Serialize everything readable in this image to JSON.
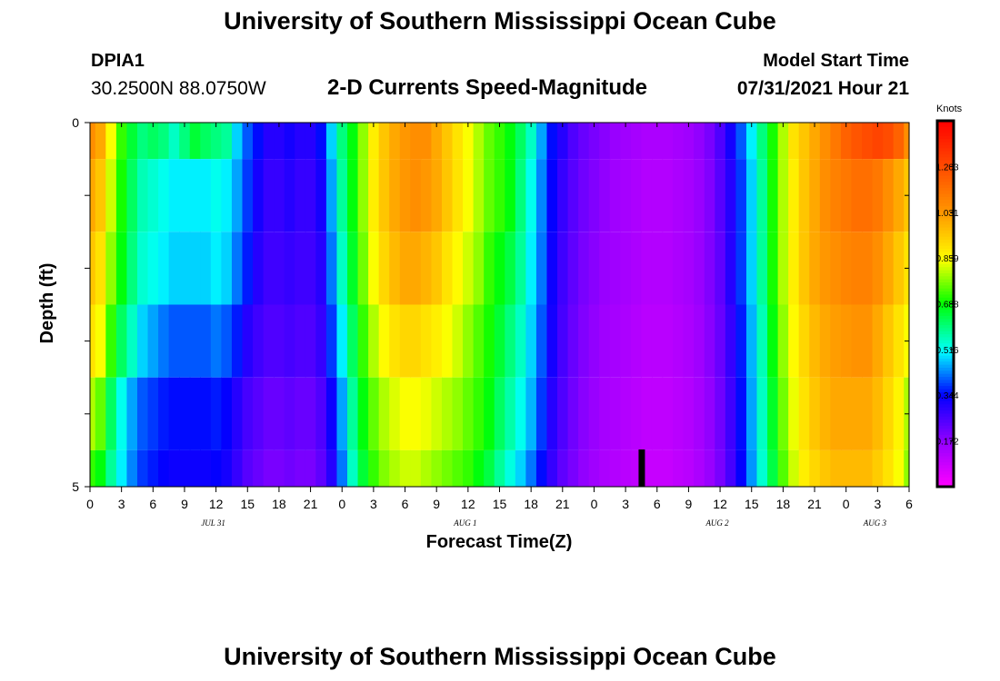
{
  "header": {
    "title": "University of Southern Mississippi Ocean Cube",
    "station_id": "DPIA1",
    "coords": "30.2500N  88.0750W",
    "model_label": "Model Start Time",
    "model_time": "07/31/2021 Hour 21"
  },
  "footer": {
    "title": "University of Southern Mississippi Ocean Cube"
  },
  "chart_data": {
    "type": "heatmap",
    "title": "2-D Currents Speed-Magnitude",
    "xlabel": "Forecast Time(Z)",
    "ylabel": "Depth (ft)",
    "x_range_hours": [
      0,
      78
    ],
    "y_range": [
      0,
      5
    ],
    "y_ticks": [
      "0",
      "5"
    ],
    "x_tick_labels": [
      "0",
      "3",
      "6",
      "9",
      "12",
      "15",
      "18",
      "21",
      "0",
      "3",
      "6",
      "9",
      "12",
      "15",
      "18",
      "21",
      "0",
      "3",
      "6",
      "9",
      "12",
      "15",
      "18",
      "21",
      "0",
      "3",
      "6"
    ],
    "date_labels": [
      {
        "label": "JUL 31",
        "hour": 12
      },
      {
        "label": "AUG 1",
        "hour": 36
      },
      {
        "label": "AUG 2",
        "hour": 60
      },
      {
        "label": "AUG 3",
        "hour": 75
      }
    ],
    "colorbar": {
      "units": "Knots",
      "min": 0.0,
      "max": 1.375,
      "ticks": [
        "0.172",
        "0.344",
        "0.516",
        "0.688",
        "0.859",
        "1.031",
        "1.203"
      ]
    },
    "marker_hour": 52.5,
    "depth_layers": [
      {
        "from": 0,
        "to": 0.5
      },
      {
        "from": 0.5,
        "to": 1.5
      },
      {
        "from": 1.5,
        "to": 2.5
      },
      {
        "from": 2.5,
        "to": 3.5
      },
      {
        "from": 3.5,
        "to": 4.5
      },
      {
        "from": 4.5,
        "to": 5
      }
    ],
    "speed_by_layer": [
      [
        1.05,
        1.0,
        0.85,
        0.72,
        0.65,
        0.6,
        0.62,
        0.6,
        0.55,
        0.6,
        0.65,
        0.62,
        0.6,
        0.58,
        0.48,
        0.4,
        0.35,
        0.3,
        0.3,
        0.32,
        0.3,
        0.3,
        0.35,
        0.48,
        0.6,
        0.68,
        0.78,
        0.88,
        0.95,
        1.0,
        1.03,
        1.05,
        1.05,
        1.0,
        0.95,
        0.9,
        0.85,
        0.8,
        0.75,
        0.72,
        0.68,
        0.62,
        0.55,
        0.45,
        0.35,
        0.3,
        0.25,
        0.22,
        0.2,
        0.18,
        0.16,
        0.15,
        0.14,
        0.13,
        0.13,
        0.13,
        0.14,
        0.15,
        0.17,
        0.2,
        0.25,
        0.32,
        0.4,
        0.5,
        0.6,
        0.7,
        0.8,
        0.9,
        0.95,
        1.0,
        1.05,
        1.1,
        1.15,
        1.18,
        1.2,
        1.22,
        1.2,
        1.15,
        1.05
      ],
      [
        1.0,
        0.95,
        0.82,
        0.7,
        0.62,
        0.56,
        0.54,
        0.52,
        0.5,
        0.5,
        0.5,
        0.5,
        0.52,
        0.5,
        0.45,
        0.38,
        0.32,
        0.28,
        0.28,
        0.3,
        0.28,
        0.28,
        0.32,
        0.45,
        0.58,
        0.68,
        0.78,
        0.88,
        0.95,
        1.0,
        1.03,
        1.05,
        1.03,
        1.0,
        0.95,
        0.9,
        0.85,
        0.8,
        0.75,
        0.72,
        0.68,
        0.6,
        0.52,
        0.43,
        0.34,
        0.28,
        0.24,
        0.21,
        0.19,
        0.17,
        0.15,
        0.14,
        0.13,
        0.12,
        0.12,
        0.12,
        0.13,
        0.14,
        0.16,
        0.19,
        0.24,
        0.3,
        0.38,
        0.48,
        0.58,
        0.7,
        0.8,
        0.88,
        0.95,
        1.0,
        1.05,
        1.08,
        1.1,
        1.12,
        1.12,
        1.1,
        1.05,
        1.0,
        0.95
      ],
      [
        0.95,
        0.9,
        0.78,
        0.68,
        0.6,
        0.54,
        0.52,
        0.5,
        0.48,
        0.48,
        0.48,
        0.48,
        0.5,
        0.48,
        0.42,
        0.36,
        0.3,
        0.27,
        0.27,
        0.28,
        0.27,
        0.27,
        0.3,
        0.42,
        0.55,
        0.66,
        0.76,
        0.85,
        0.92,
        0.97,
        1.0,
        1.0,
        0.98,
        0.95,
        0.9,
        0.86,
        0.82,
        0.78,
        0.72,
        0.68,
        0.64,
        0.58,
        0.5,
        0.42,
        0.33,
        0.27,
        0.23,
        0.2,
        0.18,
        0.16,
        0.15,
        0.14,
        0.13,
        0.12,
        0.12,
        0.12,
        0.13,
        0.14,
        0.16,
        0.19,
        0.23,
        0.3,
        0.38,
        0.48,
        0.58,
        0.7,
        0.8,
        0.88,
        0.95,
        1.0,
        1.03,
        1.05,
        1.07,
        1.08,
        1.08,
        1.05,
        1.0,
        0.95,
        0.9
      ],
      [
        0.9,
        0.85,
        0.72,
        0.62,
        0.55,
        0.48,
        0.45,
        0.42,
        0.4,
        0.4,
        0.4,
        0.4,
        0.42,
        0.4,
        0.36,
        0.3,
        0.27,
        0.25,
        0.25,
        0.26,
        0.25,
        0.25,
        0.28,
        0.38,
        0.5,
        0.62,
        0.72,
        0.8,
        0.86,
        0.9,
        0.92,
        0.92,
        0.9,
        0.88,
        0.85,
        0.82,
        0.78,
        0.74,
        0.7,
        0.65,
        0.6,
        0.55,
        0.48,
        0.4,
        0.32,
        0.26,
        0.22,
        0.19,
        0.17,
        0.15,
        0.14,
        0.13,
        0.12,
        0.11,
        0.11,
        0.11,
        0.12,
        0.13,
        0.15,
        0.18,
        0.22,
        0.28,
        0.36,
        0.46,
        0.56,
        0.68,
        0.78,
        0.86,
        0.92,
        0.97,
        1.0,
        1.02,
        1.03,
        1.04,
        1.04,
        1.0,
        0.95,
        0.9,
        0.85
      ],
      [
        0.8,
        0.75,
        0.62,
        0.52,
        0.45,
        0.4,
        0.38,
        0.36,
        0.35,
        0.35,
        0.35,
        0.35,
        0.36,
        0.34,
        0.3,
        0.26,
        0.24,
        0.22,
        0.22,
        0.23,
        0.22,
        0.22,
        0.25,
        0.33,
        0.45,
        0.58,
        0.68,
        0.75,
        0.8,
        0.83,
        0.85,
        0.85,
        0.84,
        0.82,
        0.8,
        0.78,
        0.75,
        0.72,
        0.68,
        0.62,
        0.57,
        0.52,
        0.46,
        0.38,
        0.3,
        0.25,
        0.21,
        0.18,
        0.16,
        0.14,
        0.13,
        0.12,
        0.11,
        0.1,
        0.1,
        0.1,
        0.11,
        0.12,
        0.14,
        0.17,
        0.21,
        0.27,
        0.35,
        0.45,
        0.55,
        0.66,
        0.76,
        0.84,
        0.9,
        0.95,
        0.98,
        1.0,
        1.0,
        1.0,
        1.0,
        0.97,
        0.92,
        0.87,
        0.8
      ],
      [
        0.72,
        0.68,
        0.58,
        0.5,
        0.43,
        0.38,
        0.36,
        0.34,
        0.33,
        0.33,
        0.33,
        0.33,
        0.34,
        0.32,
        0.28,
        0.24,
        0.22,
        0.2,
        0.2,
        0.21,
        0.2,
        0.2,
        0.23,
        0.3,
        0.42,
        0.55,
        0.65,
        0.72,
        0.77,
        0.8,
        0.82,
        0.82,
        0.8,
        0.78,
        0.76,
        0.74,
        0.72,
        0.68,
        0.64,
        0.58,
        0.53,
        0.48,
        0.42,
        0.35,
        0.28,
        0.23,
        0.2,
        0.17,
        0.15,
        0.13,
        0.12,
        0.11,
        0.1,
        0.09,
        0.09,
        0.09,
        0.1,
        0.11,
        0.13,
        0.16,
        0.2,
        0.26,
        0.34,
        0.44,
        0.54,
        0.64,
        0.74,
        0.82,
        0.88,
        0.92,
        0.95,
        0.97,
        0.97,
        0.97,
        0.97,
        0.94,
        0.9,
        0.85,
        0.78
      ]
    ]
  }
}
